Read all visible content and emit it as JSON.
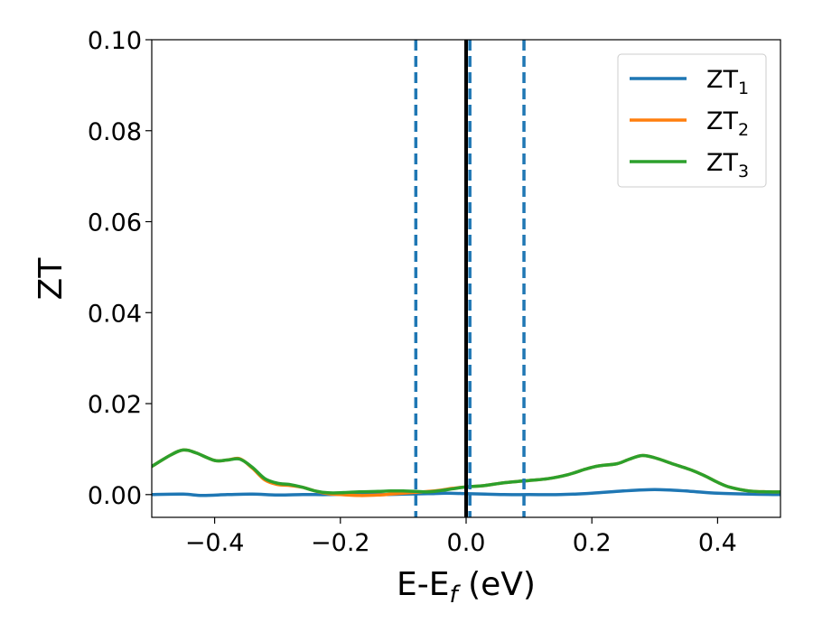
{
  "chart_data": {
    "type": "line",
    "xlabel": "E-E",
    "xlabel_sub": "f",
    "xlabel_unit": " (eV)",
    "ylabel": "ZT",
    "xlim": [
      -0.5,
      0.5
    ],
    "ylim": [
      -0.005,
      0.1
    ],
    "x_ticks": [
      -0.4,
      -0.2,
      0.0,
      0.2,
      0.4
    ],
    "x_tick_labels": [
      "−0.4",
      "−0.2",
      "0.0",
      "0.2",
      "0.4"
    ],
    "y_ticks": [
      0.0,
      0.02,
      0.04,
      0.06,
      0.08,
      0.1
    ],
    "y_tick_labels": [
      "0.00",
      "0.02",
      "0.04",
      "0.06",
      "0.08",
      "0.10"
    ],
    "grid": false,
    "legend_position": "top-right",
    "series": [
      {
        "name": "ZT",
        "name_sub": "1",
        "color": "#1f77b4",
        "x": [
          -0.5,
          -0.45,
          -0.42,
          -0.38,
          -0.34,
          -0.3,
          -0.26,
          -0.22,
          -0.18,
          -0.14,
          -0.1,
          -0.06,
          -0.03,
          0.0,
          0.03,
          0.06,
          0.1,
          0.15,
          0.2,
          0.25,
          0.3,
          0.35,
          0.4,
          0.45,
          0.5
        ],
        "y": [
          0.0,
          0.0001,
          -0.0002,
          0.0,
          0.0001,
          -0.0001,
          0.0,
          0.0,
          0.0001,
          0.0,
          0.0001,
          0.0002,
          0.0003,
          0.0002,
          0.0001,
          0.0,
          0.0,
          0.0,
          0.0003,
          0.0008,
          0.0011,
          0.0008,
          0.0003,
          0.0001,
          0.0
        ]
      },
      {
        "name": "ZT",
        "name_sub": "2",
        "color": "#ff7f0e",
        "x": [
          -0.5,
          -0.47,
          -0.45,
          -0.43,
          -0.4,
          -0.38,
          -0.36,
          -0.34,
          -0.32,
          -0.3,
          -0.28,
          -0.26,
          -0.24,
          -0.22,
          -0.2,
          -0.17,
          -0.14,
          -0.12,
          -0.1,
          -0.08,
          -0.06,
          -0.04,
          -0.02,
          0.0,
          0.03,
          0.06,
          0.1,
          0.13,
          0.16,
          0.19,
          0.21,
          0.24,
          0.26,
          0.28,
          0.3,
          0.33,
          0.36,
          0.38,
          0.4,
          0.42,
          0.45,
          0.48,
          0.5
        ],
        "y": [
          0.0062,
          0.0087,
          0.0098,
          0.0092,
          0.0075,
          0.0076,
          0.0079,
          0.0058,
          0.0032,
          0.0022,
          0.002,
          0.0016,
          0.0008,
          0.0002,
          0.0,
          -0.0002,
          -0.0001,
          0.0001,
          0.0003,
          0.0005,
          0.0007,
          0.001,
          0.0014,
          0.0017,
          0.002,
          0.0026,
          0.0031,
          0.0035,
          0.0043,
          0.0056,
          0.0063,
          0.0068,
          0.0078,
          0.0086,
          0.0081,
          0.0067,
          0.0053,
          0.0041,
          0.0027,
          0.0016,
          0.0008,
          0.0006,
          0.0006
        ]
      },
      {
        "name": "ZT",
        "name_sub": "3",
        "color": "#2ca02c",
        "x": [
          -0.5,
          -0.47,
          -0.45,
          -0.43,
          -0.4,
          -0.38,
          -0.36,
          -0.34,
          -0.32,
          -0.3,
          -0.28,
          -0.26,
          -0.24,
          -0.22,
          -0.2,
          -0.17,
          -0.14,
          -0.12,
          -0.1,
          -0.08,
          -0.06,
          -0.04,
          -0.02,
          0.0,
          0.03,
          0.06,
          0.1,
          0.13,
          0.16,
          0.19,
          0.21,
          0.24,
          0.26,
          0.28,
          0.3,
          0.33,
          0.36,
          0.38,
          0.4,
          0.42,
          0.45,
          0.48,
          0.5
        ],
        "y": [
          0.0062,
          0.0087,
          0.0098,
          0.0092,
          0.0075,
          0.0076,
          0.0078,
          0.006,
          0.0035,
          0.0025,
          0.0022,
          0.0016,
          0.0008,
          0.0004,
          0.0004,
          0.0006,
          0.0007,
          0.0008,
          0.0008,
          0.0007,
          0.0006,
          0.0009,
          0.0013,
          0.0017,
          0.002,
          0.0026,
          0.0031,
          0.0035,
          0.0043,
          0.0056,
          0.0063,
          0.0068,
          0.0078,
          0.0086,
          0.0081,
          0.0067,
          0.0053,
          0.0041,
          0.0027,
          0.0016,
          0.0008,
          0.0006,
          0.0006
        ]
      }
    ],
    "reference_lines": [
      {
        "x": 0.0,
        "color": "#000000",
        "style": "solid"
      },
      {
        "x": -0.08,
        "color": "#1f77b4",
        "style": "dashed"
      },
      {
        "x": 0.006,
        "color": "#1f77b4",
        "style": "dashed"
      },
      {
        "x": 0.092,
        "color": "#1f77b4",
        "style": "dashed"
      }
    ]
  }
}
